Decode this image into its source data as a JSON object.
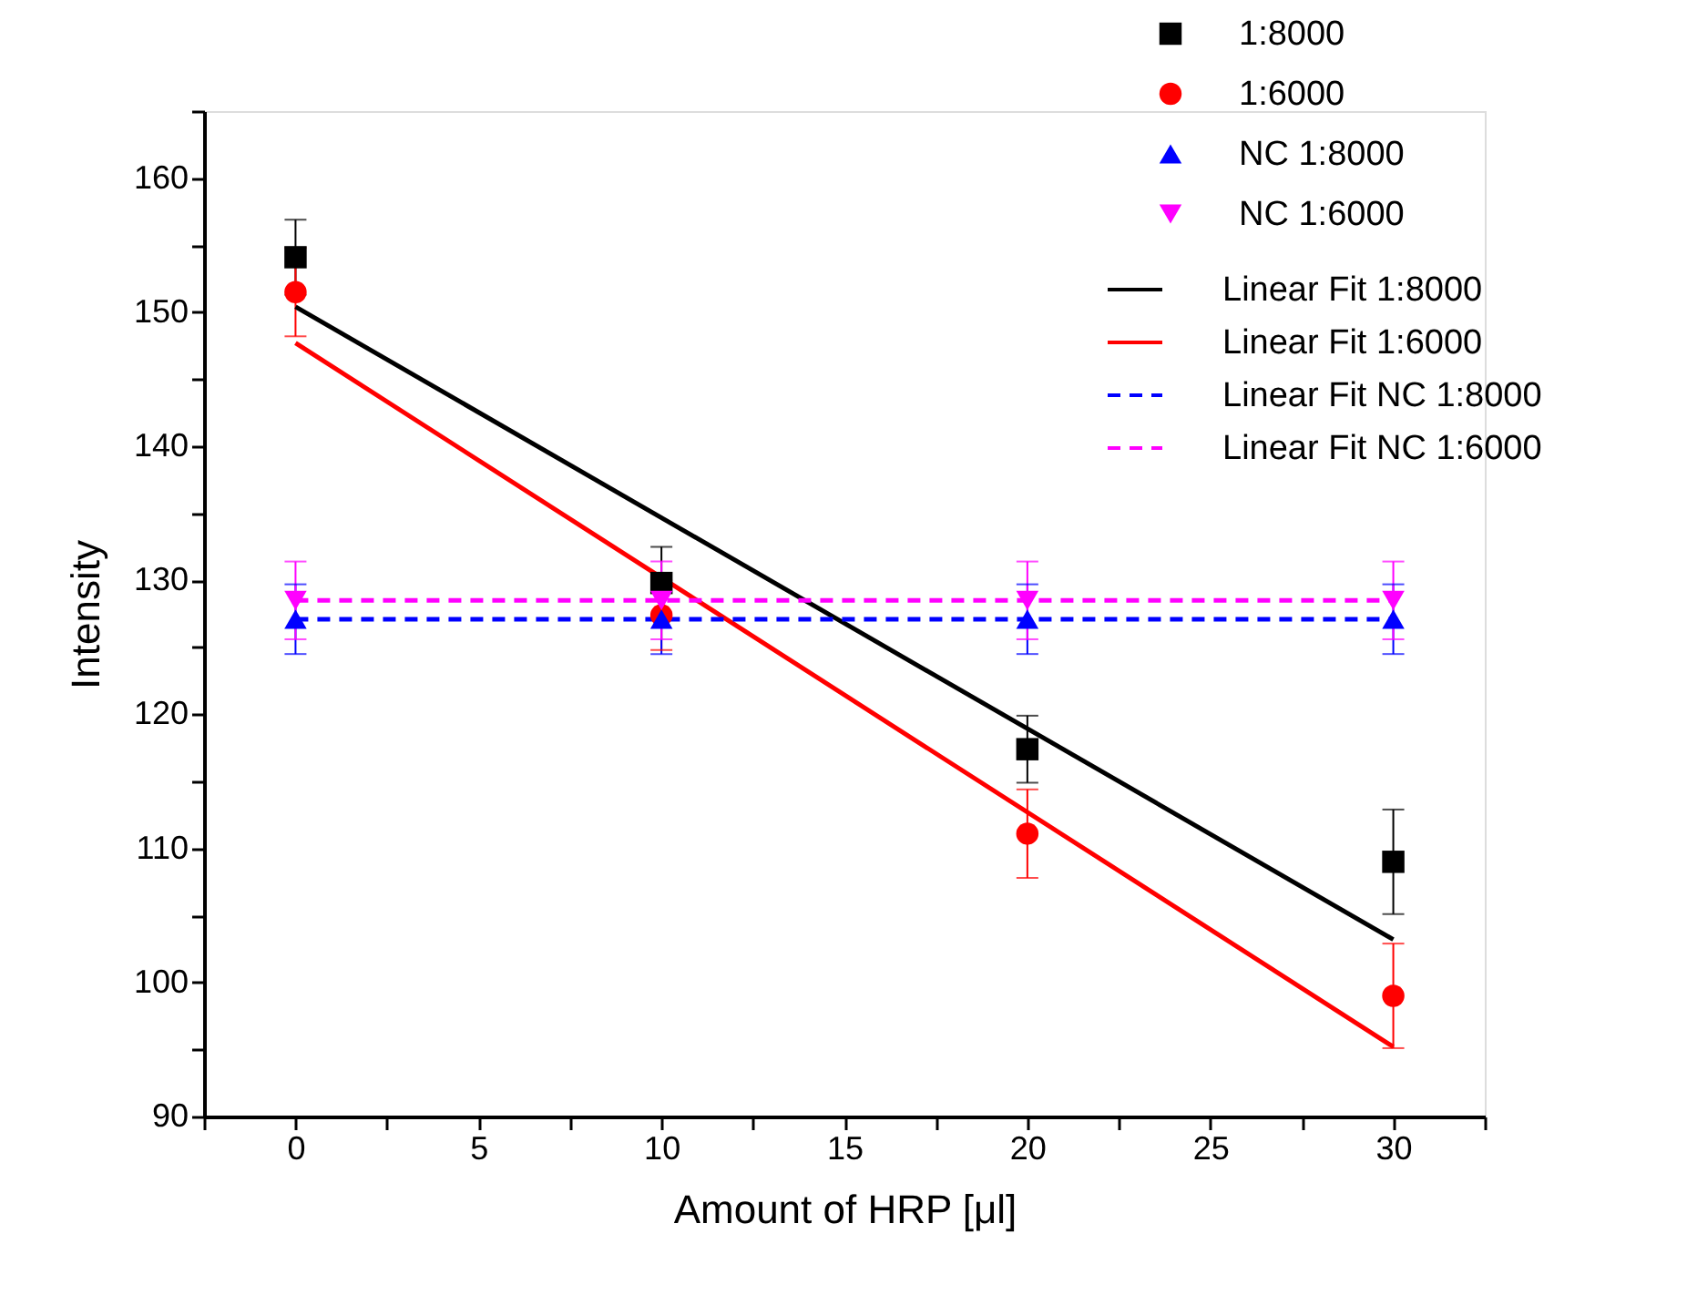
{
  "chart_data": {
    "type": "scatter",
    "xlabel": "Amount of HRP [μl]",
    "ylabel": "Intensity",
    "xlim": [
      -2.5,
      32.5
    ],
    "ylim": [
      90,
      165
    ],
    "xticks": [
      {
        "value": -2.5,
        "label": null
      },
      0,
      {
        "value": 2.5,
        "label": null
      },
      5,
      {
        "value": 7.5,
        "label": null
      },
      10,
      {
        "value": 12.5,
        "label": null
      },
      15,
      {
        "value": 17.5,
        "label": null
      },
      20,
      {
        "value": 22.5,
        "label": null
      },
      25,
      {
        "value": 27.5,
        "label": null
      },
      30,
      {
        "value": 32.5,
        "label": null
      }
    ],
    "yticks": [
      90,
      {
        "value": 95,
        "label": null
      },
      100,
      {
        "value": 105,
        "label": null
      },
      110,
      {
        "value": 115,
        "label": null
      },
      120,
      {
        "value": 125,
        "label": null
      },
      130,
      {
        "value": 135,
        "label": null
      },
      140,
      {
        "value": 145,
        "label": null
      },
      150,
      {
        "value": 155,
        "label": null
      },
      160,
      {
        "value": 165,
        "label": null
      }
    ],
    "grid": false,
    "legend": "top right",
    "series": [
      {
        "name": "1:8000",
        "marker": "square",
        "color": "#000000",
        "x": [
          0,
          10,
          20,
          30
        ],
        "values": [
          154.1,
          129.8,
          117.4,
          109.0
        ],
        "errors": [
          2.8,
          2.7,
          2.5,
          3.9
        ]
      },
      {
        "name": "1:6000",
        "marker": "circle",
        "color": "#ff0000",
        "x": [
          0,
          10,
          20,
          30
        ],
        "values": [
          151.5,
          127.4,
          111.1,
          99.0
        ],
        "errors": [
          3.3,
          2.6,
          3.3,
          3.9
        ]
      },
      {
        "name": "NC 1:8000",
        "marker": "triangle",
        "color": "#0000ff",
        "x": [
          0,
          10,
          20,
          30
        ],
        "values": [
          127.1,
          127.1,
          127.1,
          127.1
        ],
        "errors": [
          2.6,
          2.6,
          2.6,
          2.6
        ]
      },
      {
        "name": "NC 1:6000",
        "marker": "triangle-down",
        "color": "#ff00ff",
        "x": [
          0,
          10,
          20,
          30
        ],
        "values": [
          128.5,
          128.5,
          128.5,
          128.5
        ],
        "errors": [
          2.9,
          2.9,
          2.9,
          2.9
        ]
      },
      {
        "name": "Linear Fit 1:8000",
        "type": "line",
        "line_style": "solid",
        "color": "#000000",
        "x": [
          0,
          30
        ],
        "values": [
          150.4,
          103.2
        ]
      },
      {
        "name": "Linear Fit 1:6000",
        "type": "line",
        "line_style": "solid",
        "color": "#ff0000",
        "x": [
          0,
          30
        ],
        "values": [
          147.7,
          95.2
        ]
      },
      {
        "name": "Linear Fit NC 1:8000",
        "type": "line",
        "line_style": "dashed",
        "color": "#0000ff",
        "x": [
          0,
          30
        ],
        "values": [
          127.1,
          127.1
        ]
      },
      {
        "name": "Linear Fit NC 1:6000",
        "type": "line",
        "line_style": "dashed",
        "color": "#ff00ff",
        "x": [
          0,
          30
        ],
        "values": [
          128.5,
          128.5
        ]
      }
    ]
  }
}
